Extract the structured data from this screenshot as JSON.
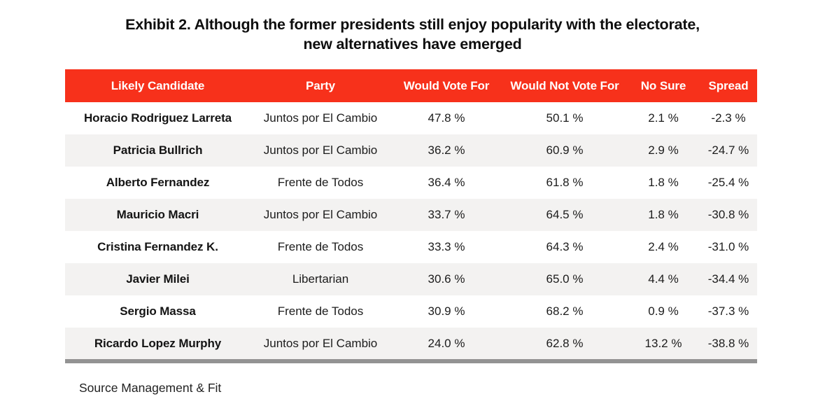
{
  "title": {
    "line1": "Exhibit 2. Although the former presidents still enjoy popularity with the electorate,",
    "line2": "new alternatives have emerged"
  },
  "chart_data": {
    "type": "table",
    "title": "Exhibit 2. Although the former presidents still enjoy popularity with the electorate, new alternatives have emerged",
    "columns": [
      "Likely Candidate",
      "Party",
      "Would Vote For",
      "Would Not Vote For",
      "No Sure",
      "Spread"
    ],
    "units": "%",
    "rows": [
      {
        "candidate": "Horacio Rodriguez Larreta",
        "party": "Juntos por El Cambio",
        "would_vote_for": "47.8 %",
        "would_not_vote_for": "50.1 %",
        "no_sure": "2.1 %",
        "spread": "-2.3 %"
      },
      {
        "candidate": "Patricia Bullrich",
        "party": "Juntos por El Cambio",
        "would_vote_for": "36.2 %",
        "would_not_vote_for": "60.9 %",
        "no_sure": "2.9 %",
        "spread": "-24.7 %"
      },
      {
        "candidate": "Alberto Fernandez",
        "party": "Frente de Todos",
        "would_vote_for": "36.4 %",
        "would_not_vote_for": "61.8 %",
        "no_sure": "1.8 %",
        "spread": "-25.4 %"
      },
      {
        "candidate": "Mauricio Macri",
        "party": "Juntos por El Cambio",
        "would_vote_for": "33.7 %",
        "would_not_vote_for": "64.5 %",
        "no_sure": "1.8 %",
        "spread": "-30.8 %"
      },
      {
        "candidate": "Cristina Fernandez K.",
        "party": "Frente de Todos",
        "would_vote_for": "33.3 %",
        "would_not_vote_for": "64.3 %",
        "no_sure": "2.4 %",
        "spread": "-31.0 %"
      },
      {
        "candidate": "Javier Milei",
        "party": "Libertarian",
        "would_vote_for": "30.6 %",
        "would_not_vote_for": "65.0 %",
        "no_sure": "4.4 %",
        "spread": "-34.4 %"
      },
      {
        "candidate": "Sergio Massa",
        "party": "Frente de Todos",
        "would_vote_for": "30.9 %",
        "would_not_vote_for": "68.2 %",
        "no_sure": "0.9 %",
        "spread": "-37.3 %"
      },
      {
        "candidate": "Ricardo Lopez Murphy",
        "party": "Juntos por El Cambio",
        "would_vote_for": "24.0 %",
        "would_not_vote_for": "62.8 %",
        "no_sure": "13.2 %",
        "spread": "-38.8 %"
      }
    ]
  },
  "source": "Source Management & Fit",
  "colors": {
    "header_bg": "#F7311B",
    "header_text": "#FFFFFF",
    "alt_row_bg": "#F3F2F1",
    "bottom_bar": "#939393",
    "title_text": "#0E0E0E",
    "body_text": "#1C1C1C"
  }
}
